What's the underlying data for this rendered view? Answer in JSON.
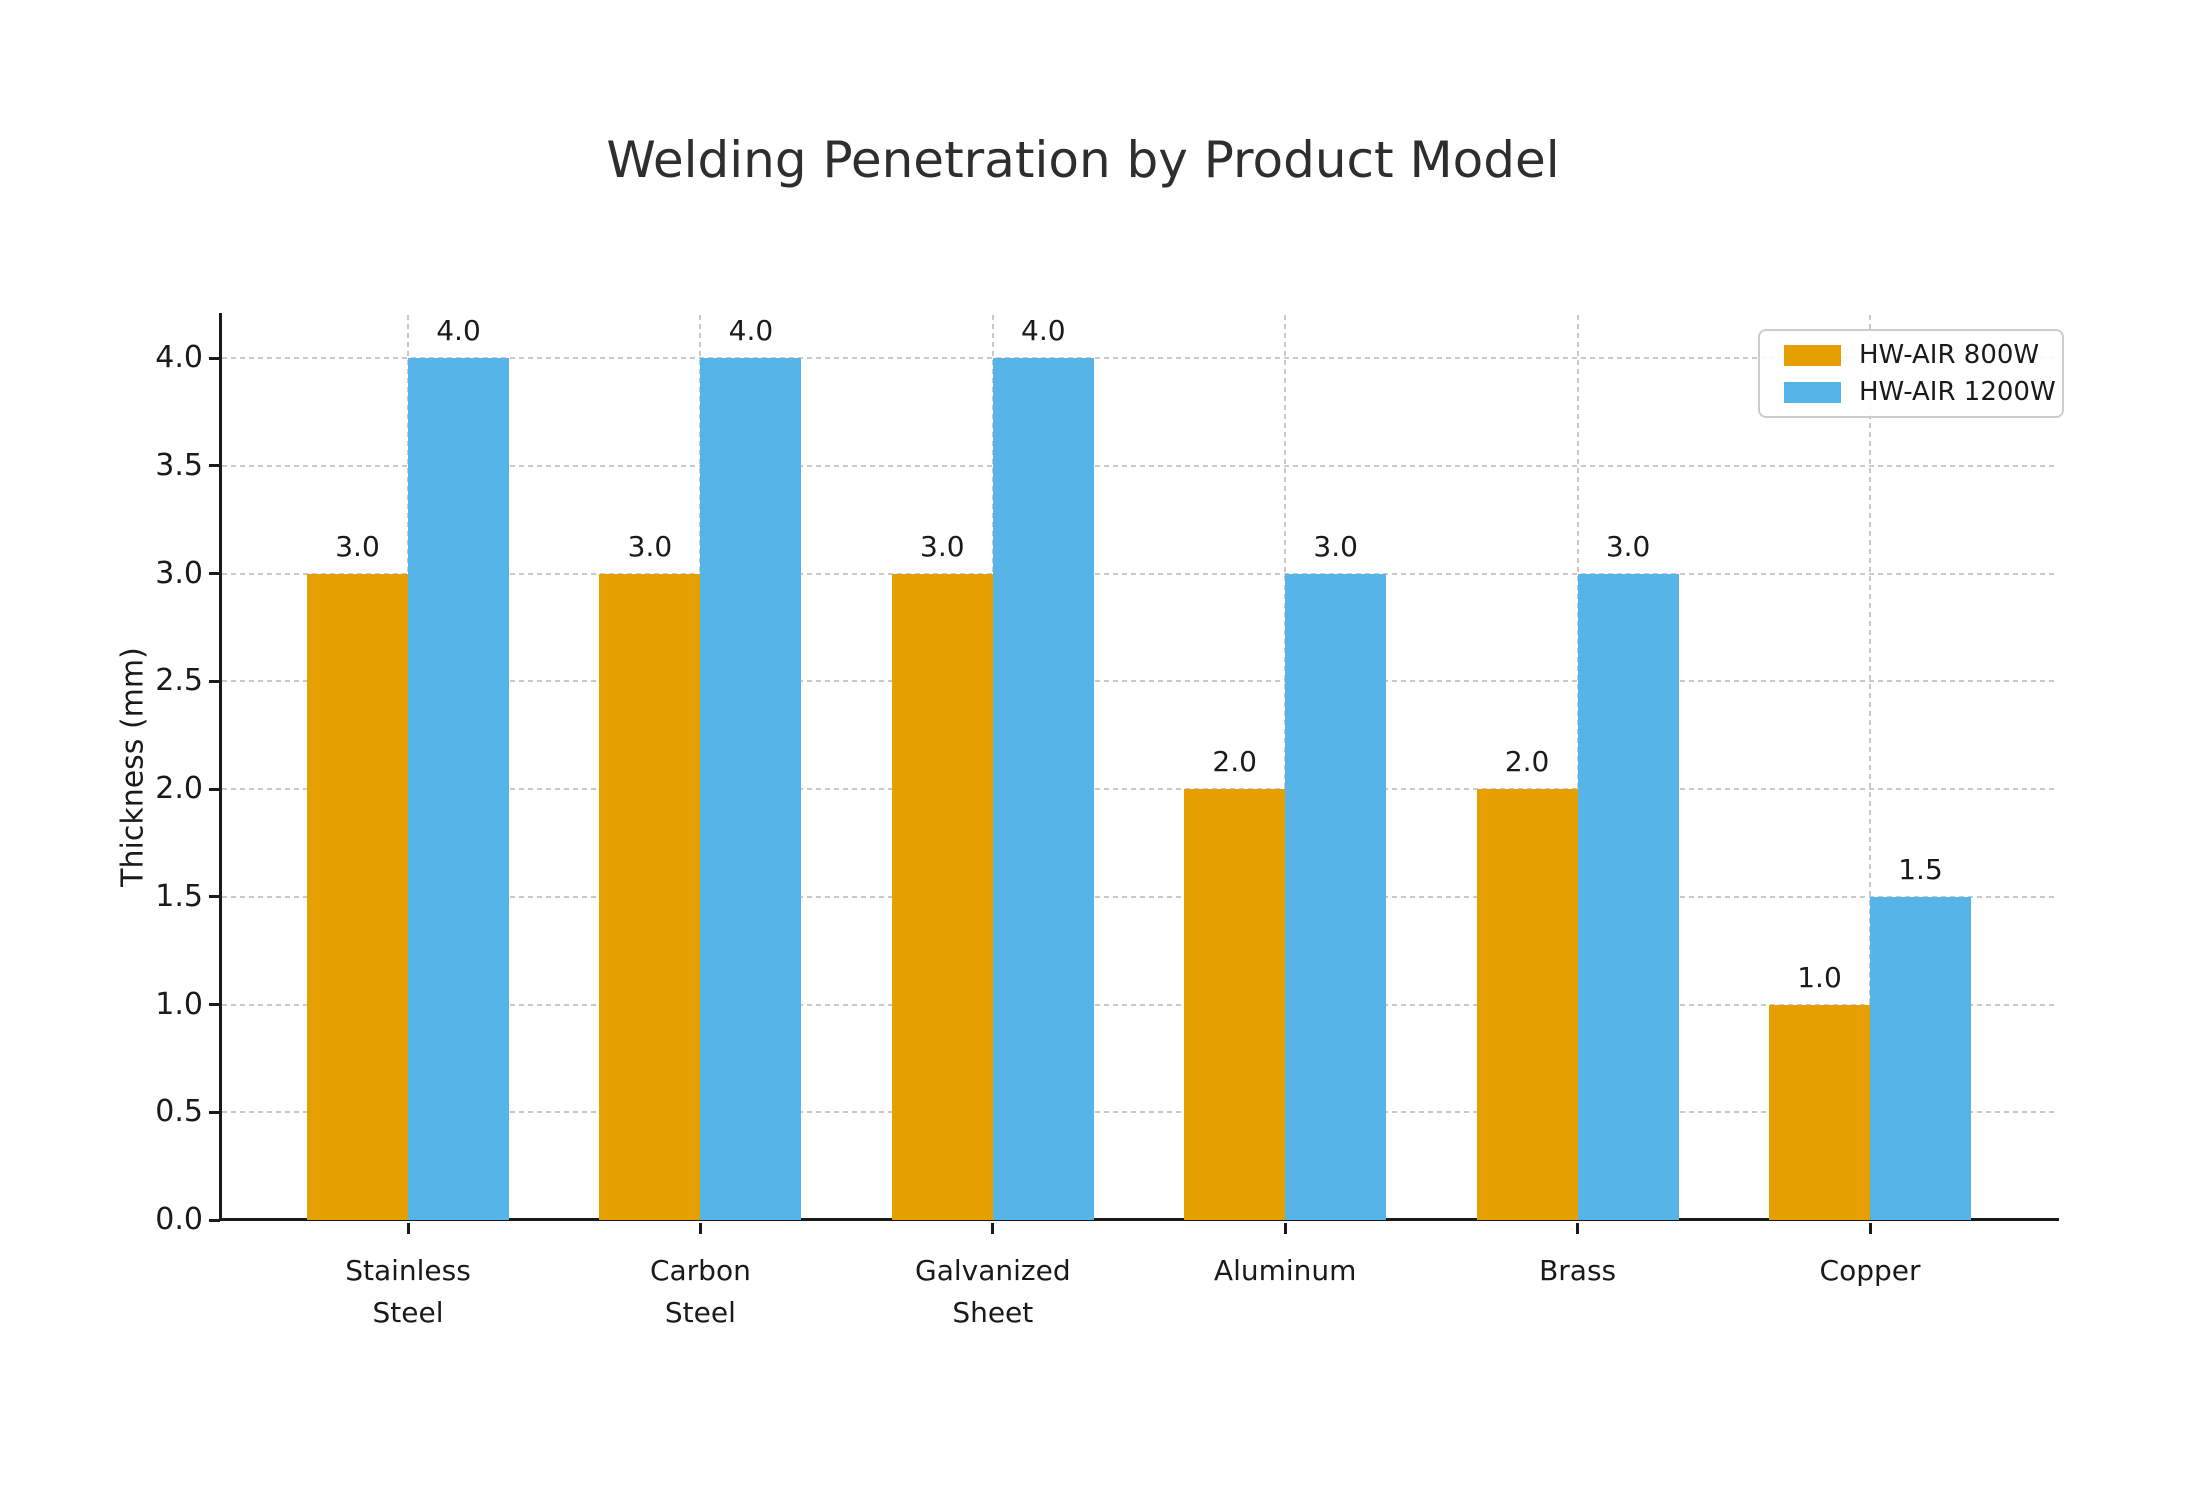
{
  "chart_data": {
    "type": "bar",
    "title": "Welding Penetration by Product Model",
    "xlabel": "",
    "ylabel": "Thickness (mm)",
    "categories": [
      "Stainless Steel",
      "Carbon Steel",
      "Galvanized Sheet",
      "Aluminum",
      "Brass",
      "Copper"
    ],
    "category_label_lines": [
      [
        "Stainless",
        "Steel"
      ],
      [
        "Carbon",
        "Steel"
      ],
      [
        "Galvanized",
        "Sheet"
      ],
      [
        "Aluminum"
      ],
      [
        "Brass"
      ],
      [
        "Copper"
      ]
    ],
    "series": [
      {
        "name": "HW-AIR 800W",
        "color": "#E69F00",
        "values": [
          3.0,
          3.0,
          3.0,
          2.0,
          2.0,
          1.0
        ]
      },
      {
        "name": "HW-AIR 1200W",
        "color": "#56B4E9",
        "values": [
          4.0,
          4.0,
          4.0,
          3.0,
          3.0,
          1.5
        ]
      }
    ],
    "bar_value_labels": [
      [
        "3.0",
        "3.0",
        "3.0",
        "2.0",
        "2.0",
        "1.0"
      ],
      [
        "4.0",
        "4.0",
        "4.0",
        "3.0",
        "3.0",
        "1.5"
      ]
    ],
    "ylim": [
      0.0,
      4.2
    ],
    "yticks": [
      0.0,
      0.5,
      1.0,
      1.5,
      2.0,
      2.5,
      3.0,
      3.5,
      4.0
    ],
    "ytick_labels": [
      "0.0",
      "0.5",
      "1.0",
      "1.5",
      "2.0",
      "2.5",
      "3.0",
      "3.5",
      "4.0"
    ],
    "grid": {
      "visible": true,
      "style": "dashed",
      "color": "#c9c9c9",
      "horizontal": true,
      "vertical": true
    },
    "legend": {
      "position": "upper right",
      "entries": [
        "HW-AIR 800W",
        "HW-AIR 1200W"
      ],
      "border_color": "#cccccc"
    },
    "colors": {
      "background": "#ffffff",
      "axis": "#1a1a1a",
      "text": "#1a1a1a",
      "title_text": "#2e2e2e",
      "series_orange": "#E69F00",
      "series_blue": "#56B4E9"
    }
  }
}
